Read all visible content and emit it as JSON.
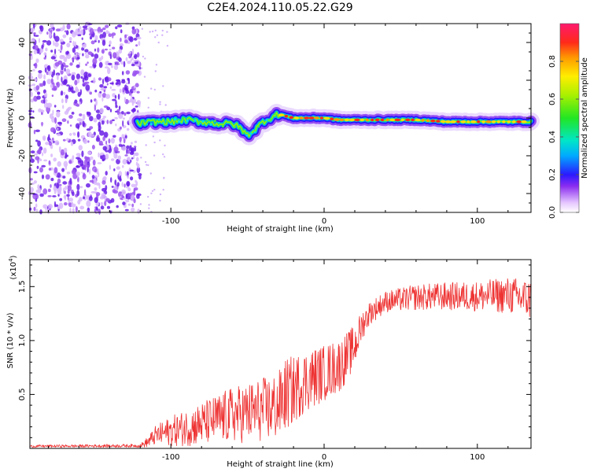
{
  "title": "C2E4.2024.110.05.22.G29",
  "chart_data": [
    {
      "type": "heatmap",
      "xlabel": "Height of straight line (km)",
      "ylabel": "Frequency (Hz)",
      "xlim": [
        -192,
        135
      ],
      "ylim": [
        -50,
        50
      ],
      "xticks": [
        -100,
        0,
        100
      ],
      "yticks": [
        -40,
        -20,
        0,
        20,
        40
      ],
      "colorbar": {
        "label": "Normalized spectral amplitude",
        "range": [
          0,
          1
        ],
        "ticks": [
          0.0,
          0.2,
          0.4,
          0.6,
          0.8
        ]
      },
      "ridge": {
        "x": [
          -122,
          -110,
          -100,
          -90,
          -80,
          -70,
          -60,
          -55,
          -50,
          -45,
          -40,
          -35,
          -30,
          -25,
          -20,
          -10,
          0,
          10,
          20,
          40,
          60,
          80,
          100,
          120,
          135
        ],
        "freq": [
          -3,
          -2,
          -2,
          -1,
          -2,
          -3,
          -3,
          -5,
          -9,
          -6,
          -2,
          0,
          2,
          1,
          0,
          0,
          0,
          -1,
          -1,
          -1,
          -1,
          -2,
          -2,
          -2,
          -2
        ]
      },
      "noise_region_x": [
        -192,
        -120
      ]
    },
    {
      "type": "line",
      "xlabel": "Height of straight line (km)",
      "ylabel": "SNR (10 * v/v)",
      "yscale_label": "(x10",
      "yscale_exp": "4",
      "xlim": [
        -192,
        135
      ],
      "ylim": [
        0,
        17500
      ],
      "xticks": [
        -100,
        0,
        100
      ],
      "yticks": [
        0.5,
        1.0,
        1.5
      ],
      "color": "#ee3333",
      "envelope": {
        "x": [
          -192,
          -120,
          -115,
          -110,
          -100,
          -90,
          -80,
          -70,
          -60,
          -50,
          -40,
          -30,
          -25,
          -20,
          -15,
          -10,
          0,
          10,
          15,
          20,
          25,
          30,
          40,
          60,
          80,
          100,
          120,
          135
        ],
        "mean": [
          200,
          250,
          600,
          1200,
          1600,
          1900,
          2300,
          2700,
          3100,
          3300,
          3600,
          3900,
          5000,
          5400,
          6000,
          6400,
          7000,
          7700,
          8500,
          9500,
          11500,
          12600,
          13600,
          14000,
          14100,
          14100,
          14200,
          13800
        ],
        "amp": [
          120,
          150,
          500,
          900,
          1400,
          1700,
          2000,
          2300,
          2600,
          2800,
          3000,
          3200,
          3400,
          3200,
          3000,
          2900,
          2600,
          2500,
          2300,
          2000,
          1400,
          1100,
          1000,
          1200,
          1300,
          1400,
          1700,
          1900
        ]
      }
    }
  ]
}
